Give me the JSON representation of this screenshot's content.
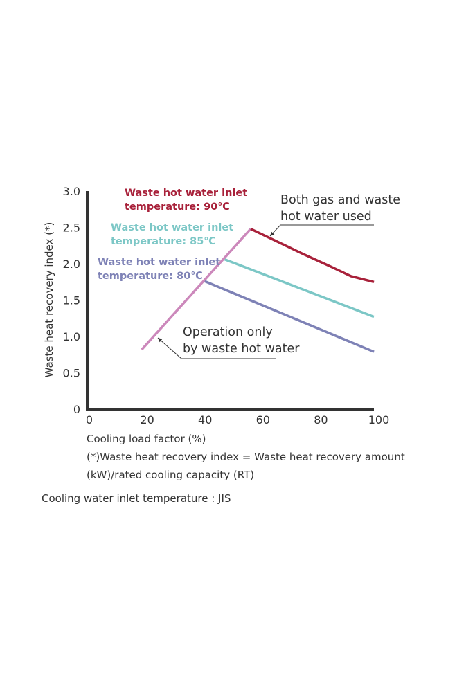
{
  "chart_data": {
    "type": "line",
    "title": "",
    "xlabel": "Cooling load factor (%)",
    "ylabel": "Waste heat recovery index (*)",
    "xlim": [
      0,
      100
    ],
    "ylim": [
      0,
      3.0
    ],
    "x_ticks": [
      "0",
      "20",
      "40",
      "60",
      "80",
      "100"
    ],
    "y_ticks": [
      "0",
      "0.5",
      "1.0",
      "1.5",
      "2.0",
      "2.5",
      "3.0"
    ],
    "grid": false,
    "series": [
      {
        "name": "",
        "color": "#cc88bb",
        "x": [
          19,
          57
        ],
        "y": [
          0.82,
          2.48
        ]
      },
      {
        "name": "",
        "color": "#a8213a",
        "x": [
          57,
          65,
          75,
          85,
          92,
          100
        ],
        "y": [
          2.48,
          2.33,
          2.14,
          1.96,
          1.83,
          1.75
        ]
      },
      {
        "name": "",
        "color": "#7cc7c6",
        "x": [
          48,
          100
        ],
        "y": [
          2.06,
          1.27
        ]
      },
      {
        "name": "",
        "color": "#7e82b6",
        "x": [
          41,
          100
        ],
        "y": [
          1.76,
          0.79
        ]
      }
    ],
    "series_labels": [
      {
        "line1": "Waste hot water inlet",
        "line2": "temperature: 90℃",
        "color": "#a8213a"
      },
      {
        "line1": "Waste hot water inlet",
        "line2": "temperature: 85℃",
        "color": "#7cc7c6"
      },
      {
        "line1": "Waste hot water inlet",
        "line2": "temperature: 80℃",
        "color": "#7e82b6"
      }
    ],
    "annotations": [
      {
        "line1": "Both gas and waste",
        "line2": "hot water used"
      },
      {
        "line1": "Operation only",
        "line2": "by waste hot water"
      }
    ],
    "footnote": {
      "line1": "(*)Waste heat recovery index = Waste heat recovery amount",
      "line2": "(kW)/rated cooling capacity (RT)"
    }
  },
  "condition_note": "Cooling water inlet temperature : JIS"
}
